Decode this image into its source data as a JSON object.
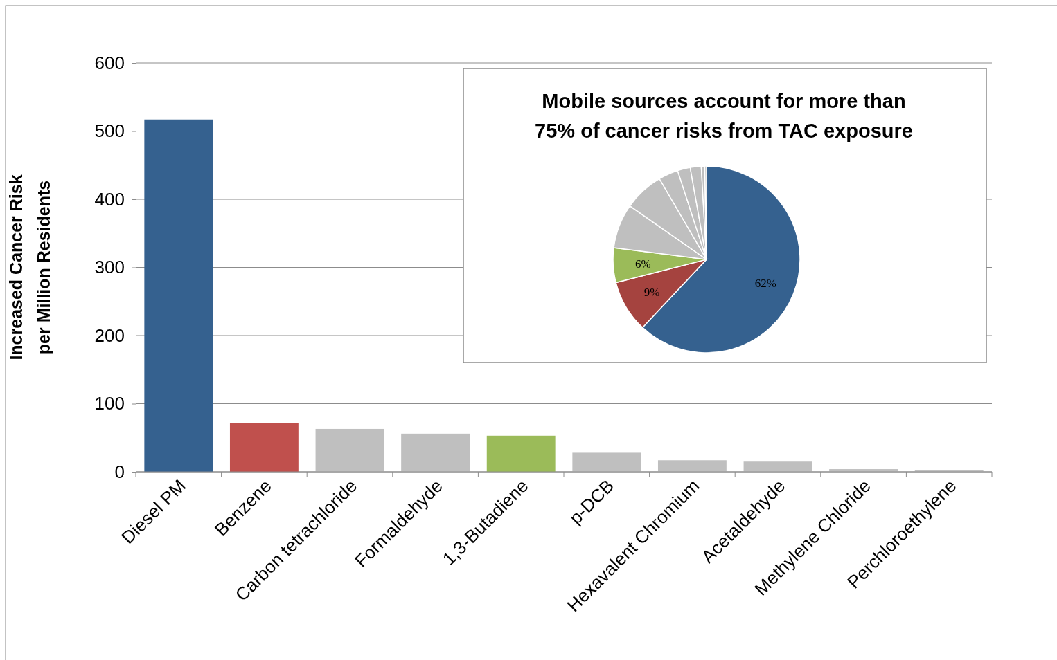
{
  "chart_data": [
    {
      "type": "bar",
      "categories": [
        "Diesel PM",
        "Benzene",
        "Carbon tetrachloride",
        "Formaldehyde",
        "1,3-Butadiene",
        "p-DCB",
        "Hexavalent Chromium",
        "Acetaldehyde",
        "Methylene Chloride",
        "Perchloroethylene"
      ],
      "values": [
        517,
        72,
        63,
        56,
        53,
        28,
        17,
        15,
        4,
        2
      ],
      "colors": [
        "#35618f",
        "#c0504d",
        "#bfbfbf",
        "#bfbfbf",
        "#9bbb59",
        "#bfbfbf",
        "#bfbfbf",
        "#bfbfbf",
        "#bfbfbf",
        "#bfbfbf"
      ],
      "ylabel": "Increased Cancer Risk\nper Million Residents",
      "ylim": [
        0,
        600
      ],
      "yticks": [
        0,
        100,
        200,
        300,
        400,
        500,
        600
      ],
      "grid": "y"
    },
    {
      "type": "pie",
      "title": "Mobile sources account for more than\n75% of cancer risks from TAC exposure",
      "categories": [
        null,
        null,
        null,
        null,
        null,
        null,
        null,
        null,
        null,
        null
      ],
      "values": [
        62,
        9,
        6,
        7.7,
        6.9,
        3.4,
        2.2,
        1.9,
        0.6,
        0.3
      ],
      "colors": [
        "#35618f",
        "#a5433f",
        "#9bbb59",
        "#bfbfbf",
        "#bfbfbf",
        "#bfbfbf",
        "#bfbfbf",
        "#bfbfbf",
        "#bfbfbf",
        "#bfbfbf"
      ],
      "value_labels": [
        "62%",
        "9%",
        "6%",
        null,
        null,
        null,
        null,
        null,
        null,
        null
      ]
    }
  ]
}
